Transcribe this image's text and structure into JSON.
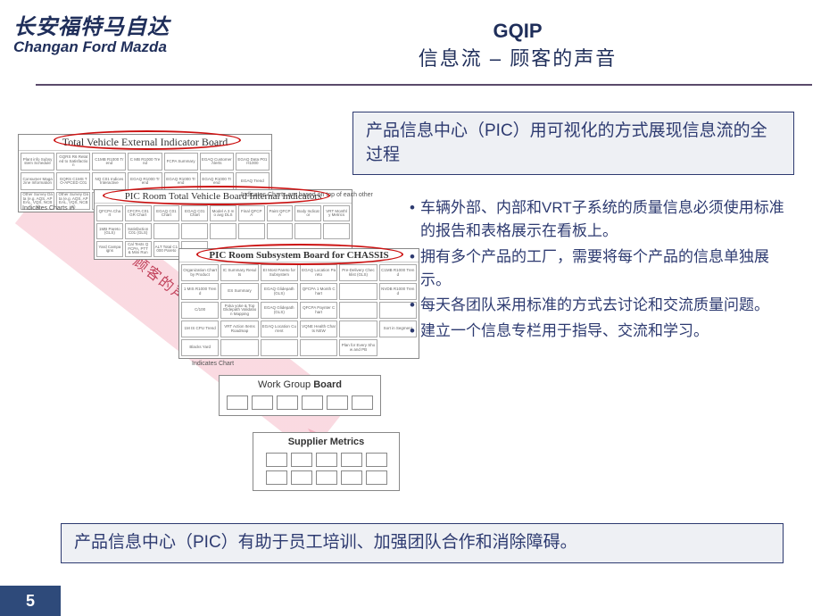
{
  "header": {
    "logo_cn": "长安福特马自达",
    "logo_en": "Changan Ford Mazda",
    "title_main": "GQIP",
    "title_sub": "信息流 – 顾客的声音"
  },
  "diagram": {
    "arrow_label": "顾客的声音",
    "arrow_color": "#c1405a",
    "arrow_fill": "rgba(240,150,170,0.35)",
    "highlight_color": "#c11",
    "board1": {
      "title": "Total Vehicle External Indicator Board",
      "cells": [
        "Plant info Subsystem Schedule",
        "GQRS R6 Related to Satisfaction",
        "C1MB R1000 Trend",
        "C MB R1000 Trend",
        "FCPA Summary",
        "EGAQ Customer Alerts",
        "EGAQ Data P01 H1000",
        "Consumer Magazine Information",
        "GQRS C1MS TO-APCED C01",
        "NQ C01 Indices Interactive",
        "EGAQ R1000 Trend",
        "EGAQ R1000 Trend",
        "EGAQ R1000 Trend",
        "EGAQ Trend",
        "Other Survey Data (e.g. AQS, APEAL, VQS, NCBS)",
        "Other Survey Data (e.g. AQS, APEAL, VQS, NCBS)",
        "BVE Summary",
        "",
        "",
        "",
        ""
      ],
      "rows": 3,
      "cols": 7,
      "footer": "Indicates Charts in"
    },
    "board2": {
      "title": "PIC Room Total Vehicle Board Internal Indicators",
      "cells_top": [
        "QFCPA Chart",
        "CFCPA C01 GR Chart",
        "EGAQ C01 Chart",
        "EGAQ C01 Chart",
        "Model A 3 mo avg DLS",
        "Final QFCPA",
        "Paint QFCPA",
        "Body Indicator",
        "VRT Monthly Metrics"
      ],
      "cells_bot": [
        "1MB Pareto (GLS)",
        "Satisfaction C01 (GLS)",
        "",
        "",
        "",
        "",
        "",
        "",
        ""
      ],
      "cells_row3": [
        "Yard Campaigns",
        "Cal Tests QFCPA, PTT & Mini Run",
        "ALT Total C1000 Pareto",
        ""
      ],
      "footer_right": "Indicates Charts are based on top of each other"
    },
    "board3": {
      "title": "PIC Room Subsystem Board for CHASSIS",
      "cells": [
        "Organization Chart by Product",
        "IC Summary Results",
        "EI Most Pareto for Subsystem",
        "EGAQ Location Pareto",
        "Pre-Delivery Checklist (GLS)",
        "C1MB R1000 Trend",
        "1 MIS R1000 Trend",
        "ES Summary",
        "EGAQ Glidepath (GLS)",
        "QFCPA 1 Month Chart",
        "",
        "NVDB R1000 Trend",
        "C/100",
        "Poka yoke & Top Glidepath Validation Mapping",
        "EGAQ Glidepath (GLS)",
        "QFCPA Paynter Chart",
        "",
        "",
        "1M IS CPU Trend",
        "VRT Action Items Roadmap",
        "EGAQ Location Current",
        "VQNE Health Charts NEW",
        "",
        "Sort in Segment",
        "Blacks Yard",
        "",
        "",
        "",
        "Plan for Every Show and PB"
      ],
      "rows": 5,
      "cols": 6,
      "footer": "Indicates Chart"
    },
    "board4": {
      "title_plain": "Work Group ",
      "title_bold": "Board",
      "cell_count": 6
    },
    "board5": {
      "title_plain": "Supplier Metrics",
      "cell_count": 10
    }
  },
  "info_top": "产品信息中心（PIC）用可视化的方式展现信息流的全过程",
  "bullets": [
    "车辆外部、内部和VRT子系统的质量信息必须使用标准的报告和表格展示在看板上。",
    "拥有多个产品的工厂，需要将每个产品的信息单独展示。",
    "每天各团队采用标准的方式去讨论和交流质量问题。",
    "建立一个信息专栏用于指导、交流和学习。"
  ],
  "info_bottom": "产品信息中心（PIC）有助于员工培训、加强团队合作和消除障碍。",
  "page_number": "5",
  "colors": {
    "brand_blue": "#1f2e5a",
    "box_border": "#2d3a70",
    "box_bg": "#eef0f4",
    "page_tab_bg": "#2e4a7a"
  }
}
